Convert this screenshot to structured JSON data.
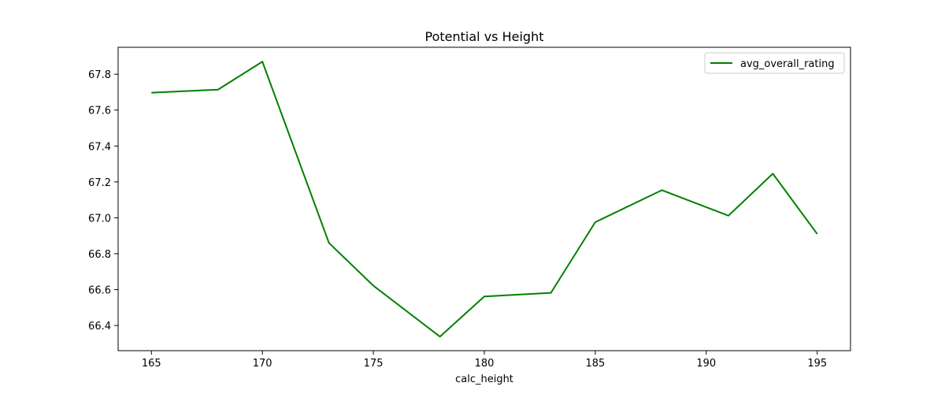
{
  "chart_data": {
    "type": "line",
    "title": "Potential vs Height",
    "xlabel": "calc_height",
    "ylabel": "",
    "x": [
      165,
      168,
      170,
      173,
      175,
      178,
      180,
      183,
      185,
      188,
      191,
      193,
      195
    ],
    "series": [
      {
        "name": "avg_overall_rating",
        "color": "#008000",
        "values": [
          67.697,
          67.714,
          67.87,
          66.86,
          66.622,
          66.338,
          66.562,
          66.582,
          66.976,
          67.154,
          67.012,
          67.246,
          66.91
        ]
      }
    ],
    "xlim": [
      163.5,
      196.5
    ],
    "ylim": [
      66.26,
      67.95
    ],
    "xticks": [
      165,
      170,
      175,
      180,
      185,
      190,
      195
    ],
    "yticks": [
      66.4,
      66.6,
      66.8,
      67.0,
      67.2,
      67.4,
      67.6,
      67.8
    ],
    "ytick_labels": [
      "66.4",
      "66.6",
      "66.8",
      "67.0",
      "67.2",
      "67.4",
      "67.6",
      "67.8"
    ],
    "grid": false,
    "legend_position": "top-right"
  }
}
